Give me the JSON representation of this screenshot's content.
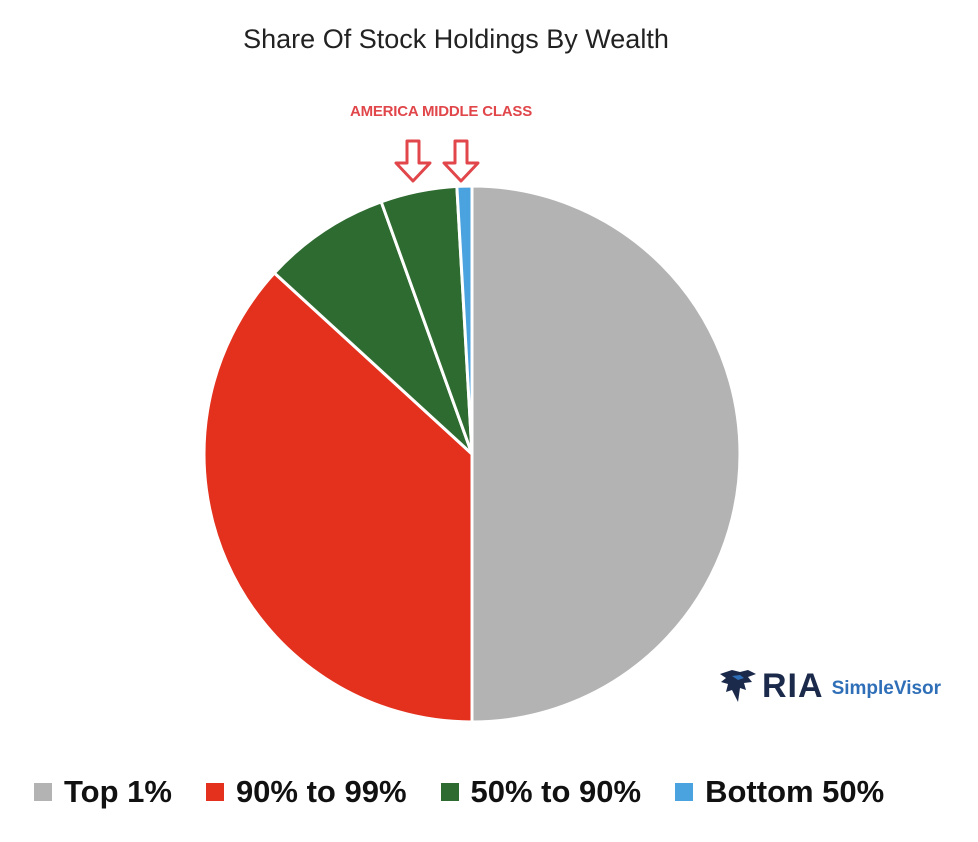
{
  "chart_data": {
    "type": "pie",
    "title": "Share Of Stock Holdings By Wealth",
    "annotation": {
      "text": "AMERICA MIDDLE CLASS",
      "color": "#e0464a",
      "points_to": [
        "50% to 90%",
        "Bottom 50%"
      ]
    },
    "slices": [
      {
        "label": "Top 1%",
        "value": 50.0,
        "color": "#b3b3b3"
      },
      {
        "label": "90% to 99%",
        "value": 36.8,
        "color": "#e3311e"
      },
      {
        "label": "50% to 90%",
        "value": 7.7,
        "color": "#2e6b30"
      },
      {
        "label": "50% to 90%",
        "value": 4.6,
        "color": "#2e6b30"
      },
      {
        "label": "Bottom 50%",
        "value": 0.9,
        "color": "#4aa3df"
      }
    ],
    "legend": [
      {
        "label": "Top 1%",
        "color": "#b3b3b3"
      },
      {
        "label": "90% to 99%",
        "color": "#e3311e"
      },
      {
        "label": "50% to 90%",
        "color": "#2e6b30"
      },
      {
        "label": "Bottom 50%",
        "color": "#4aa3df"
      }
    ],
    "legend_position": "bottom"
  },
  "branding": {
    "name": "RIA",
    "sub": "SimpleVisor"
  }
}
